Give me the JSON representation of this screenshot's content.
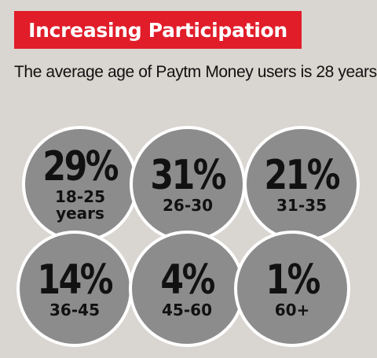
{
  "header": {
    "title": "Increasing Participation",
    "subtitle": "The average age of Paytm Money users is 28 years"
  },
  "colors": {
    "banner": "#e11d2a",
    "bubble": "#8d8c8d",
    "background": "#d9d5d0"
  },
  "chart_data": {
    "type": "bubble",
    "title": "Increasing Participation",
    "subtitle": "The average age of Paytm Money users is 28 years",
    "categories": [
      "18-25\nyears",
      "26-30",
      "31-35",
      "36-45",
      "45-60",
      "60+"
    ],
    "values": [
      29,
      31,
      21,
      14,
      4,
      1
    ],
    "labels": [
      "29%",
      "31%",
      "21%",
      "14%",
      "4%",
      "1%"
    ],
    "unit": "%"
  }
}
